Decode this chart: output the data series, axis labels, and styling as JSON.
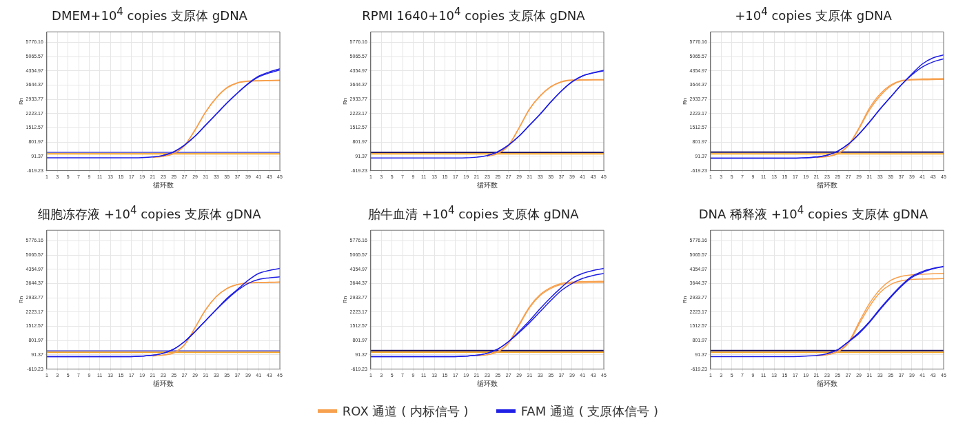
{
  "chart_data": [
    {
      "type": "line",
      "title": "DMEM+10$^{4}$ copies 支原体 gDNA",
      "xlabel": "循环数",
      "ylabel": "Rn",
      "x": [
        1,
        5,
        10,
        15,
        19,
        21,
        23,
        25,
        27,
        29,
        31,
        33,
        35,
        37,
        39,
        41,
        43,
        45
      ],
      "xlim": [
        1,
        45
      ],
      "xticks": [
        1,
        3,
        5,
        7,
        9,
        11,
        13,
        15,
        17,
        19,
        21,
        23,
        25,
        27,
        29,
        31,
        33,
        35,
        37,
        39,
        41,
        43,
        45
      ],
      "ylim": [
        -619.23,
        6300
      ],
      "yticks": [
        -619.23,
        91.37,
        801.97,
        1512.57,
        2223.17,
        2933.77,
        3644.37,
        4354.97,
        5065.57,
        5776.16
      ],
      "grid": true,
      "marker": "none",
      "series": [
        {
          "color": "#f7a04d",
          "values": [
            null,
            null,
            null,
            null,
            null,
            40,
            90,
            230,
            620,
            1400,
            2300,
            3000,
            3500,
            3750,
            3830,
            3850,
            3860,
            3870
          ]
        },
        {
          "color": "#f7a04d",
          "values": [
            null,
            null,
            null,
            null,
            null,
            null,
            100,
            240,
            640,
            1420,
            2320,
            3020,
            3520,
            3770,
            3850,
            3870,
            3880,
            3890
          ]
        },
        {
          "color": "#1f1fe6",
          "values": [
            20,
            20,
            20,
            20,
            30,
            60,
            140,
            320,
            650,
            1100,
            1650,
            2200,
            2750,
            3250,
            3700,
            4050,
            4250,
            4400
          ]
        },
        {
          "color": "#1f1fe6",
          "values": [
            null,
            null,
            null,
            null,
            null,
            null,
            140,
            320,
            650,
            1100,
            1650,
            2200,
            2750,
            3250,
            3720,
            4090,
            4300,
            4460
          ]
        }
      ],
      "ref_lines": [
        {
          "axis": "y",
          "value": 290,
          "color": "#6b6bd6"
        },
        {
          "axis": "y",
          "value": 220,
          "color": "#f5a623"
        }
      ]
    },
    {
      "type": "line",
      "title": "RPMI 1640+10$^{4}$ copies 支原体 gDNA",
      "xlabel": "循环数",
      "ylabel": "Rn",
      "x": [
        1,
        5,
        10,
        15,
        19,
        21,
        23,
        25,
        27,
        29,
        31,
        33,
        35,
        37,
        39,
        41,
        43,
        45
      ],
      "xlim": [
        1,
        45
      ],
      "xticks": [
        1,
        3,
        5,
        7,
        9,
        11,
        13,
        15,
        17,
        19,
        21,
        23,
        25,
        27,
        29,
        31,
        33,
        35,
        37,
        39,
        41,
        43,
        45
      ],
      "ylim": [
        -619.23,
        6300
      ],
      "yticks": [
        -619.23,
        91.37,
        801.97,
        1512.57,
        2223.17,
        2933.77,
        3644.37,
        4354.97,
        5065.57,
        5776.16
      ],
      "grid": true,
      "marker": "none",
      "series": [
        {
          "color": "#f7a04d",
          "values": [
            null,
            null,
            null,
            null,
            null,
            null,
            90,
            230,
            620,
            1500,
            2450,
            3100,
            3550,
            3800,
            3880,
            3890,
            3900,
            3900
          ]
        },
        {
          "color": "#f7a04d",
          "values": [
            null,
            null,
            null,
            null,
            null,
            null,
            null,
            240,
            640,
            1520,
            2470,
            3120,
            3570,
            3820,
            3900,
            3910,
            3920,
            3920
          ]
        },
        {
          "color": "#1f1fe6",
          "values": [
            10,
            10,
            10,
            10,
            20,
            50,
            130,
            320,
            650,
            1100,
            1650,
            2200,
            2800,
            3350,
            3800,
            4100,
            4250,
            4360
          ]
        },
        {
          "color": "#1f1fe6",
          "values": [
            null,
            null,
            null,
            null,
            null,
            null,
            130,
            320,
            650,
            1100,
            1650,
            2200,
            2800,
            3350,
            3810,
            4110,
            4260,
            4380
          ]
        }
      ],
      "ref_lines": [
        {
          "axis": "y",
          "value": 290,
          "color": "#1a1060"
        },
        {
          "axis": "y",
          "value": 220,
          "color": "#f5a623"
        }
      ]
    },
    {
      "type": "line",
      "title": "+10$^{4}$ copies 支原体 gDNA",
      "xlabel": "循环数",
      "ylabel": "Rn",
      "x": [
        1,
        5,
        10,
        15,
        19,
        21,
        23,
        25,
        27,
        29,
        31,
        33,
        35,
        37,
        39,
        41,
        43,
        45
      ],
      "xlim": [
        1,
        45
      ],
      "xticks": [
        1,
        3,
        5,
        7,
        9,
        11,
        13,
        15,
        17,
        19,
        21,
        23,
        25,
        27,
        29,
        31,
        33,
        35,
        37,
        39,
        41,
        43,
        45
      ],
      "ylim": [
        -619.23,
        6300
      ],
      "yticks": [
        -619.23,
        91.37,
        801.97,
        1512.57,
        2223.17,
        2933.77,
        3644.37,
        4354.97,
        5065.57,
        5776.16
      ],
      "grid": true,
      "marker": "none",
      "series": [
        {
          "color": "#f7a04d",
          "values": [
            null,
            null,
            null,
            null,
            null,
            30,
            80,
            230,
            650,
            1500,
            2500,
            3200,
            3650,
            3870,
            3930,
            3950,
            3960,
            3970
          ]
        },
        {
          "color": "#f7a04d",
          "values": [
            null,
            null,
            null,
            null,
            null,
            null,
            80,
            220,
            620,
            1450,
            2400,
            3100,
            3600,
            3850,
            3900,
            3910,
            3920,
            3930
          ]
        },
        {
          "color": "#1f1fe6",
          "values": [
            0,
            0,
            0,
            0,
            20,
            60,
            150,
            350,
            700,
            1200,
            1800,
            2450,
            3050,
            3650,
            4200,
            4700,
            5000,
            5150
          ]
        },
        {
          "color": "#1f1fe6",
          "values": [
            0,
            0,
            0,
            0,
            20,
            60,
            150,
            350,
            700,
            1200,
            1800,
            2450,
            3050,
            3650,
            4150,
            4550,
            4800,
            4950
          ]
        }
      ],
      "ref_lines": [
        {
          "axis": "y",
          "value": 300,
          "color": "#1a1060"
        },
        {
          "axis": "y",
          "value": 220,
          "color": "#f5a623"
        }
      ]
    },
    {
      "type": "line",
      "title": "细胞冻存液 +10$^{4}$ copies 支原体 gDNA",
      "xlabel": "循环数",
      "ylabel": "Rn",
      "x": [
        1,
        5,
        10,
        15,
        19,
        21,
        23,
        25,
        27,
        29,
        31,
        33,
        35,
        37,
        39,
        41,
        43,
        45
      ],
      "xlim": [
        1,
        45
      ],
      "xticks": [
        1,
        3,
        5,
        7,
        9,
        11,
        13,
        15,
        17,
        19,
        21,
        23,
        25,
        27,
        29,
        31,
        33,
        35,
        37,
        39,
        41,
        43,
        45
      ],
      "ylim": [
        -619.23,
        6300
      ],
      "yticks": [
        -619.23,
        91.37,
        801.97,
        1512.57,
        2223.17,
        2933.77,
        3644.37,
        4354.97,
        5065.57,
        5776.16
      ],
      "grid": true,
      "marker": "none",
      "series": [
        {
          "color": "#f7a04d",
          "values": [
            null,
            null,
            null,
            null,
            null,
            30,
            80,
            200,
            600,
            1450,
            2350,
            3000,
            3400,
            3600,
            3680,
            3700,
            3710,
            3720
          ]
        },
        {
          "color": "#f7a04d",
          "values": [
            null,
            null,
            null,
            null,
            null,
            null,
            80,
            190,
            590,
            1440,
            2340,
            2990,
            3390,
            3590,
            3670,
            3690,
            3700,
            3710
          ]
        },
        {
          "color": "#1f1fe6",
          "values": [
            0,
            0,
            0,
            0,
            30,
            70,
            170,
            380,
            750,
            1250,
            1800,
            2350,
            2900,
            3350,
            3800,
            4150,
            4300,
            4400
          ]
        },
        {
          "color": "#1f1fe6",
          "values": [
            0,
            0,
            0,
            0,
            30,
            70,
            170,
            380,
            750,
            1250,
            1800,
            2350,
            2850,
            3300,
            3650,
            3850,
            3930,
            3980
          ]
        }
      ],
      "ref_lines": [
        {
          "axis": "y",
          "value": 290,
          "color": "#6b6bd6"
        },
        {
          "axis": "y",
          "value": 220,
          "color": "#f5a623"
        }
      ]
    },
    {
      "type": "line",
      "title": "胎牛血清 +10$^{4}$ copies 支原体 gDNA",
      "xlabel": "循环数",
      "ylabel": "Rn",
      "x": [
        1,
        5,
        10,
        15,
        19,
        21,
        23,
        25,
        27,
        29,
        31,
        33,
        35,
        37,
        39,
        41,
        43,
        45
      ],
      "xlim": [
        1,
        45
      ],
      "xticks": [
        1,
        3,
        5,
        7,
        9,
        11,
        13,
        15,
        17,
        19,
        21,
        23,
        25,
        27,
        29,
        31,
        33,
        35,
        37,
        39,
        41,
        43,
        45
      ],
      "ylim": [
        -619.23,
        6300
      ],
      "yticks": [
        -619.23,
        91.37,
        801.97,
        1512.57,
        2223.17,
        2933.77,
        3644.37,
        4354.97,
        5065.57,
        5776.16
      ],
      "grid": true,
      "marker": "none",
      "legend": "bottom",
      "series": [
        {
          "name": "ROX 通道 ( 内标信号 )",
          "color": "#f7a04d",
          "values": [
            null,
            null,
            null,
            null,
            null,
            40,
            100,
            260,
            700,
            1600,
            2500,
            3100,
            3450,
            3650,
            3720,
            3740,
            3750,
            3760
          ]
        },
        {
          "color": "#f7a04d",
          "values": [
            null,
            null,
            null,
            null,
            null,
            null,
            90,
            240,
            660,
            1550,
            2450,
            3050,
            3400,
            3600,
            3660,
            3680,
            3690,
            3700
          ]
        },
        {
          "name": "FAM 通道 ( 支原体信号 )",
          "color": "#1f1fe6",
          "values": [
            0,
            0,
            0,
            0,
            30,
            70,
            170,
            380,
            750,
            1250,
            1800,
            2400,
            2950,
            3450,
            3900,
            4150,
            4300,
            4400
          ]
        },
        {
          "color": "#1f1fe6",
          "values": [
            0,
            0,
            0,
            0,
            30,
            70,
            170,
            380,
            750,
            1200,
            1700,
            2250,
            2800,
            3300,
            3650,
            3900,
            4050,
            4150
          ]
        }
      ],
      "ref_lines": [
        {
          "axis": "y",
          "value": 300,
          "color": "#1a1060"
        },
        {
          "axis": "y",
          "value": 230,
          "color": "#f5a623"
        }
      ]
    },
    {
      "type": "line",
      "title": "DNA 稀释液 +10$^{4}$ copies 支原体 gDNA",
      "xlabel": "循环数",
      "ylabel": "Rn",
      "x": [
        1,
        5,
        10,
        15,
        19,
        21,
        23,
        25,
        27,
        29,
        31,
        33,
        35,
        37,
        39,
        41,
        43,
        45
      ],
      "xlim": [
        1,
        45
      ],
      "xticks": [
        1,
        3,
        5,
        7,
        9,
        11,
        13,
        15,
        17,
        19,
        21,
        23,
        25,
        27,
        29,
        31,
        33,
        35,
        37,
        39,
        41,
        43,
        45
      ],
      "ylim": [
        -619.23,
        6300
      ],
      "yticks": [
        -619.23,
        91.37,
        801.97,
        1512.57,
        2223.17,
        2933.77,
        3644.37,
        4354.97,
        5065.57,
        5776.16
      ],
      "grid": true,
      "marker": "none",
      "series": [
        {
          "color": "#f7a04d",
          "values": [
            null,
            null,
            null,
            null,
            null,
            40,
            100,
            260,
            700,
            1700,
            2650,
            3350,
            3800,
            4000,
            4080,
            4110,
            4130,
            4150
          ]
        },
        {
          "color": "#f7a04d",
          "values": [
            null,
            null,
            null,
            null,
            null,
            null,
            90,
            240,
            660,
            1600,
            2500,
            3200,
            3600,
            3780,
            3850,
            3870,
            3880,
            3890
          ]
        },
        {
          "color": "#1f1fe6",
          "values": [
            0,
            0,
            0,
            0,
            30,
            60,
            150,
            350,
            750,
            1200,
            1750,
            2400,
            3000,
            3550,
            4000,
            4250,
            4400,
            4500
          ]
        },
        {
          "color": "#1f1fe6",
          "values": [
            null,
            null,
            null,
            null,
            null,
            null,
            150,
            340,
            730,
            1150,
            1700,
            2350,
            2950,
            3500,
            3950,
            4200,
            4380,
            4490
          ]
        }
      ],
      "ref_lines": [
        {
          "axis": "y",
          "value": 300,
          "color": "#1a1060"
        },
        {
          "axis": "y",
          "value": 220,
          "color": "#f5a623"
        }
      ]
    }
  ]
}
